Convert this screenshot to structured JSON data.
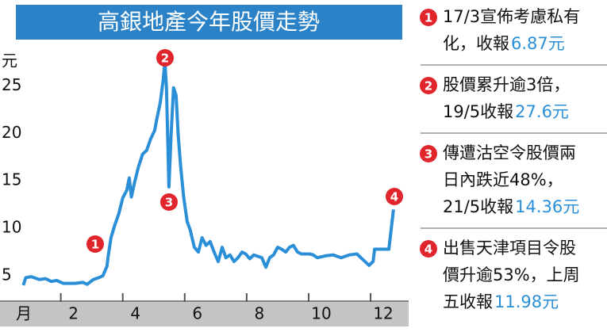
{
  "chart_data": {
    "type": "line",
    "title": "高銀地產今年股價走勢",
    "y_unit": "元",
    "x_unit": "月",
    "xlim": [
      0.55,
      13.1
    ],
    "xticks": [
      2,
      4,
      6,
      8,
      10,
      12
    ],
    "ylim": [
      2.5,
      28.2
    ],
    "yticks": [
      5,
      10,
      15,
      20,
      25
    ],
    "grid": false,
    "series": [
      {
        "color": "#2b8fd8",
        "x": [
          0.79,
          0.87,
          1.05,
          1.31,
          1.51,
          1.69,
          1.87,
          2.08,
          2.46,
          2.72,
          2.85,
          3.05,
          3.23,
          3.36,
          3.49,
          3.52,
          3.62,
          3.74,
          3.87,
          4.0,
          4.13,
          4.21,
          4.28,
          4.38,
          4.51,
          4.64,
          4.77,
          4.9,
          5.03,
          5.1,
          5.21,
          5.31,
          5.36,
          5.41,
          5.49,
          5.56,
          5.64,
          5.72,
          5.79,
          5.87,
          5.97,
          6.08,
          6.18,
          6.31,
          6.44,
          6.56,
          6.69,
          6.82,
          6.95,
          7.08,
          7.21,
          7.33,
          7.46,
          7.59,
          7.72,
          7.85,
          7.97,
          8.1,
          8.23,
          8.49,
          8.62,
          8.74,
          8.87,
          9.0,
          9.13,
          9.26,
          9.38,
          9.51,
          9.64,
          9.77,
          10.03,
          10.15,
          10.28,
          10.54,
          10.79,
          11.05,
          11.31,
          11.56,
          11.69,
          11.82,
          11.95,
          12.08,
          12.13,
          12.33,
          12.59,
          12.74
        ],
        "values": [
          4.0,
          4.8,
          4.9,
          4.6,
          4.7,
          4.4,
          4.5,
          4.2,
          4.2,
          4.3,
          4.1,
          4.6,
          4.8,
          5.0,
          6.0,
          6.87,
          9.0,
          10.3,
          11.5,
          13.2,
          14.0,
          15.3,
          13.3,
          14.8,
          16.5,
          17.8,
          18.2,
          19.4,
          20.3,
          21.5,
          23.2,
          25.7,
          27.6,
          24.8,
          14.36,
          19.8,
          24.8,
          24.0,
          19.8,
          16.5,
          13.2,
          10.7,
          9.8,
          8.0,
          7.5,
          9.0,
          8.2,
          8.6,
          7.5,
          6.5,
          8.0,
          6.9,
          7.2,
          6.5,
          6.9,
          7.5,
          7.3,
          6.8,
          7.2,
          6.9,
          5.9,
          6.9,
          7.2,
          8.0,
          7.8,
          7.5,
          8.0,
          8.2,
          7.5,
          7.3,
          7.3,
          7.2,
          6.9,
          7.1,
          7.2,
          6.9,
          7.2,
          7.3,
          6.9,
          6.5,
          6.1,
          6.5,
          7.8,
          7.8,
          7.8,
          11.98
        ]
      }
    ]
  },
  "notes": [
    {
      "marker": "1",
      "lines": [
        "17/3宣佈考慮私有",
        "化，收報"
      ],
      "highlight": "6.87元"
    },
    {
      "marker": "2",
      "lines": [
        "股價累升逾3倍，",
        "19/5收報"
      ],
      "highlight": "27.6元"
    },
    {
      "marker": "3",
      "lines": [
        "傳遭沽空令股價兩",
        "日內跌近48%，",
        "21/5收報"
      ],
      "highlight": "14.36元"
    },
    {
      "marker": "4",
      "lines": [
        "出售天津項目令股",
        "價升逾53%，上周",
        "五收報"
      ],
      "highlight": "11.98元"
    }
  ]
}
